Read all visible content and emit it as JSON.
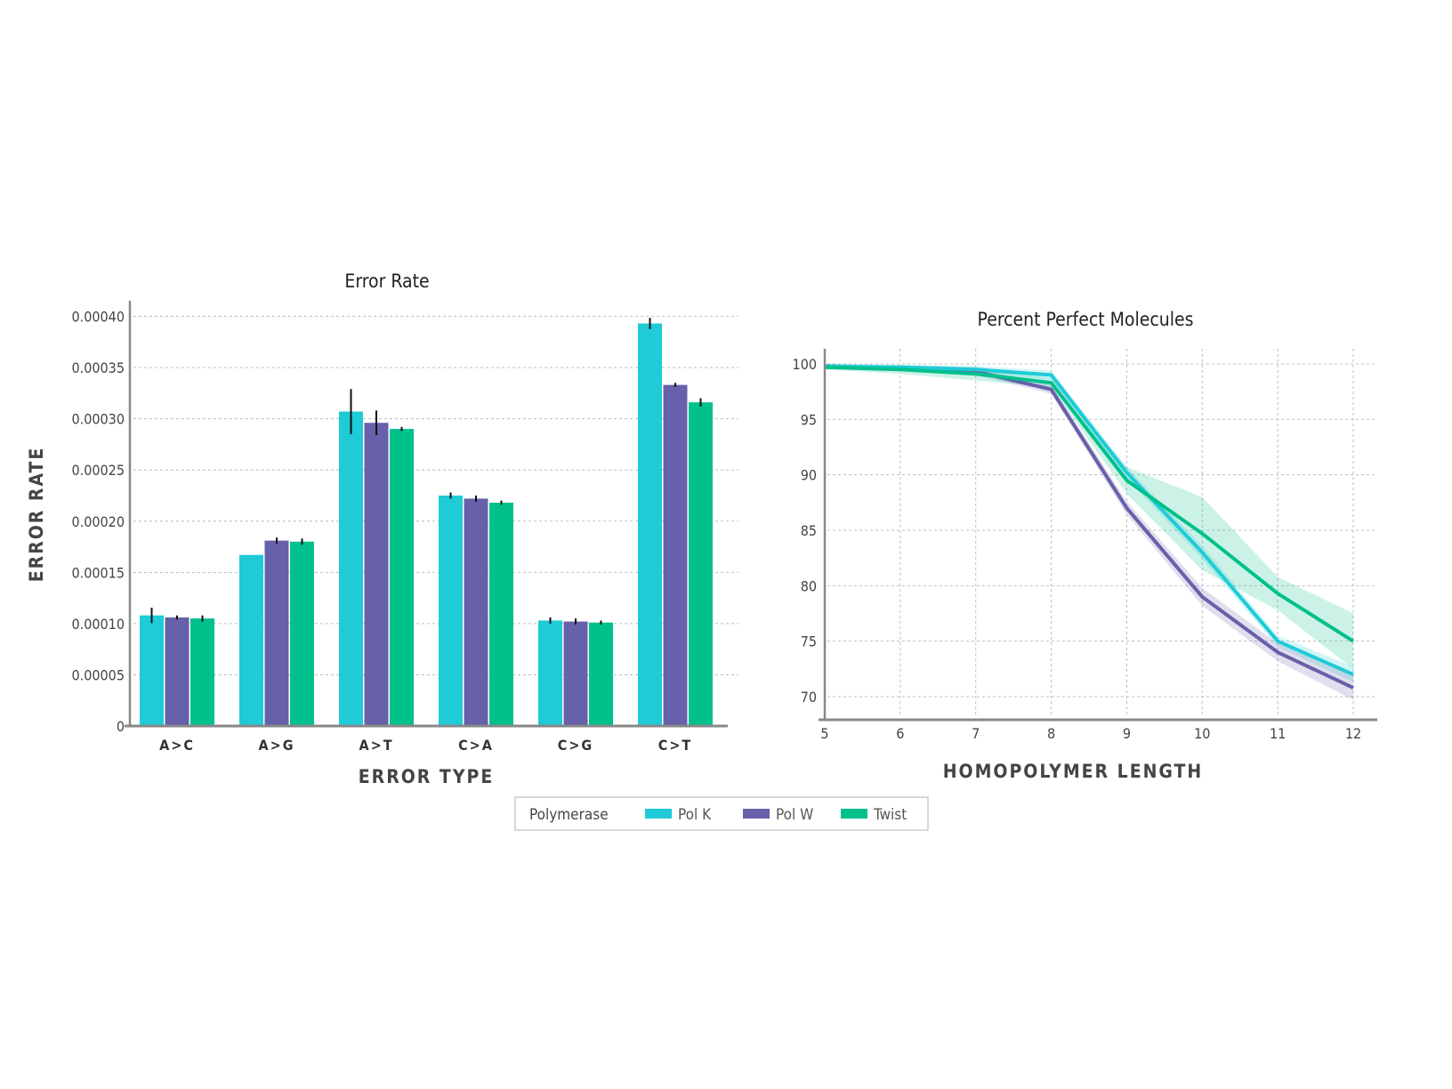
{
  "colors": {
    "Pol K": "#1ecbd6",
    "Pol W": "#6760aa",
    "Twist": "#00c08b",
    "grid": "#bdbdbd",
    "axis": "#888888"
  },
  "legend": {
    "title": "Polymerase",
    "items": [
      "Pol K",
      "Pol W",
      "Twist"
    ]
  },
  "chart_data": [
    {
      "type": "bar",
      "title": "Error Rate",
      "xlabel": "ERROR TYPE",
      "ylabel": "ERROR RATE",
      "ylim": [
        0,
        0.0004
      ],
      "yticks": [
        "0",
        "0.00005",
        "0.00010",
        "0.00015",
        "0.00020",
        "0.00025",
        "0.00030",
        "0.00035",
        "0.00040"
      ],
      "ytick_values": [
        0,
        5e-05,
        0.0001,
        0.00015,
        0.0002,
        0.00025,
        0.0003,
        0.00035,
        0.0004
      ],
      "categories": [
        "A>C",
        "A>G",
        "A>T",
        "C>A",
        "C>G",
        "C>T"
      ],
      "series": [
        {
          "name": "Pol K",
          "values": [
            0.000108,
            0.000167,
            0.000307,
            0.000225,
            0.000103,
            0.000393
          ],
          "errors": [
            7.5e-06,
            0,
            2.2e-05,
            3e-06,
            3e-06,
            5.5e-06
          ]
        },
        {
          "name": "Pol W",
          "values": [
            0.000106,
            0.000181,
            0.000296,
            0.000222,
            0.000102,
            0.000333
          ],
          "errors": [
            2e-06,
            3e-06,
            1.2e-05,
            3e-06,
            3e-06,
            2e-06
          ]
        },
        {
          "name": "Twist",
          "values": [
            0.000105,
            0.00018,
            0.00029,
            0.000218,
            0.000101,
            0.000316
          ],
          "errors": [
            3e-06,
            3e-06,
            2e-06,
            2e-06,
            2e-06,
            4e-06
          ]
        }
      ],
      "grid": true
    },
    {
      "type": "line",
      "title": "Percent Perfect Molecules",
      "xlabel": "HOMOPOLYMER LENGTH",
      "ylabel": "",
      "x": [
        5,
        6,
        7,
        8,
        9,
        10,
        11,
        12
      ],
      "xlim": [
        5,
        12
      ],
      "ylim": [
        68,
        101.5
      ],
      "yticks": [
        70,
        75,
        80,
        85,
        90,
        95,
        100
      ],
      "series": [
        {
          "name": "Pol K",
          "values": [
            99.8,
            99.7,
            99.5,
            99.0,
            90.2,
            83.0,
            75.0,
            72.0
          ],
          "band": [
            0.2,
            0.2,
            0.3,
            0.4,
            0.5,
            0.6,
            0.5,
            0.7
          ]
        },
        {
          "name": "Pol W",
          "values": [
            99.8,
            99.6,
            99.3,
            97.7,
            87.0,
            79.0,
            74.0,
            70.8
          ],
          "band": [
            0.2,
            0.2,
            0.3,
            0.4,
            0.6,
            0.8,
            0.8,
            1.1
          ]
        },
        {
          "name": "Twist",
          "values": [
            99.7,
            99.5,
            99.1,
            98.3,
            89.5,
            84.7,
            79.3,
            75.0
          ],
          "band": [
            0.2,
            0.4,
            0.6,
            0.4,
            1.2,
            3.3,
            1.5,
            2.5
          ]
        }
      ],
      "grid": true
    }
  ]
}
